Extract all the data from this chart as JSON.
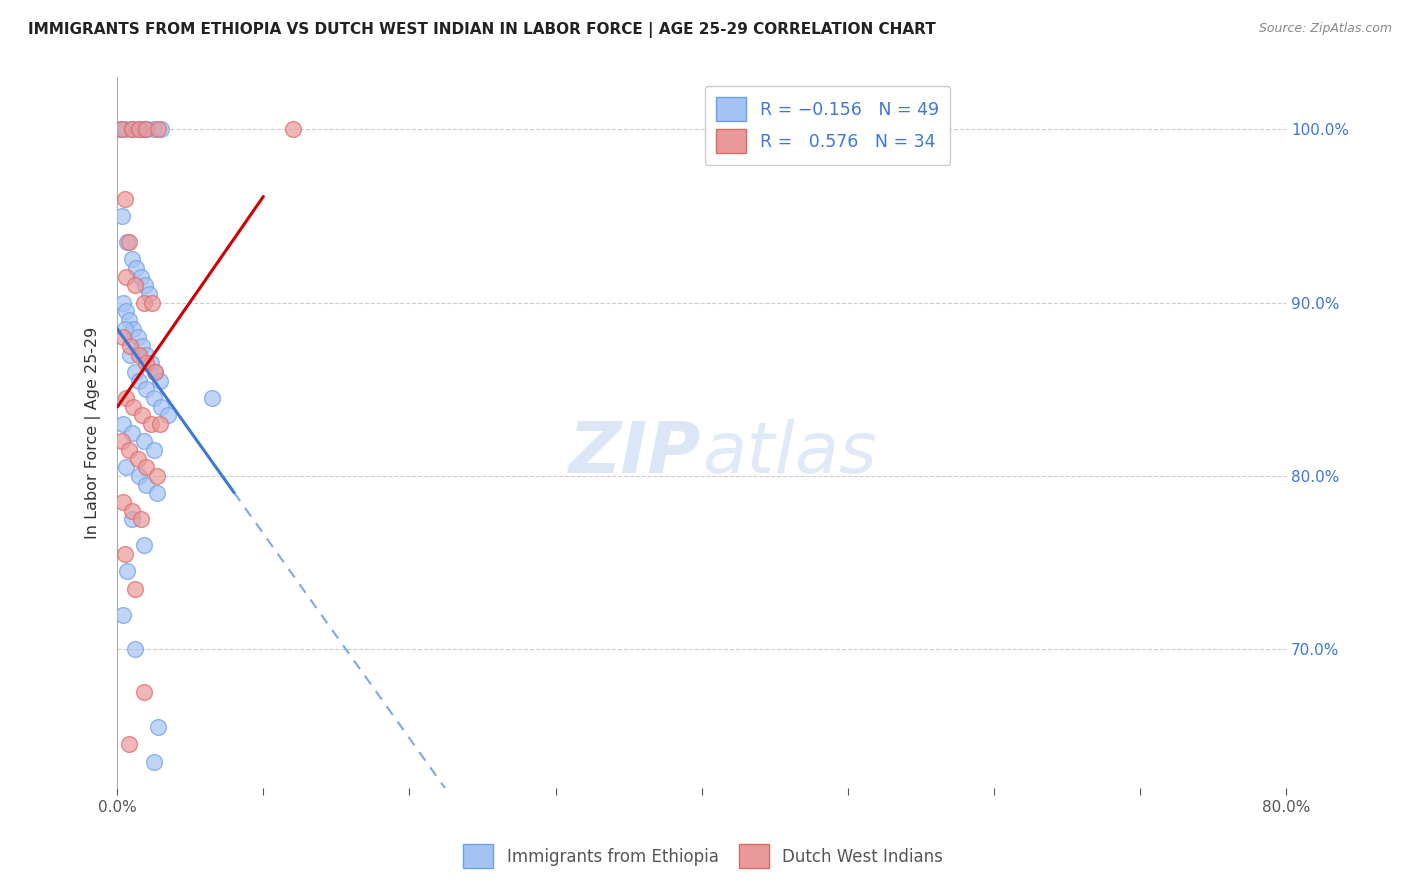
{
  "title": "IMMIGRANTS FROM ETHIOPIA VS DUTCH WEST INDIAN IN LABOR FORCE | AGE 25-29 CORRELATION CHART",
  "source": "Source: ZipAtlas.com",
  "ylabel": "In Labor Force | Age 25-29",
  "x_tick_labels": [
    "0.0%",
    "",
    "",
    "",
    "",
    "",
    "",
    "",
    "80.0%"
  ],
  "x_tick_values": [
    0,
    10,
    20,
    30,
    40,
    50,
    60,
    70,
    80
  ],
  "y_tick_labels": [
    "70.0%",
    "80.0%",
    "90.0%",
    "100.0%"
  ],
  "y_tick_values": [
    70,
    80,
    90,
    100
  ],
  "xlim": [
    0,
    80
  ],
  "ylim": [
    62,
    103
  ],
  "blue_color": "#a4c2f4",
  "pink_color": "#ea9999",
  "blue_edge_color": "#6d9eeb",
  "pink_edge_color": "#e06666",
  "blue_line_color": "#3c78d8",
  "pink_line_color": "#cc0000",
  "blue_scatter": [
    [
      0.2,
      100.0
    ],
    [
      0.5,
      100.0
    ],
    [
      1.0,
      100.0
    ],
    [
      1.5,
      100.0
    ],
    [
      2.0,
      100.0
    ],
    [
      2.5,
      100.0
    ],
    [
      1.8,
      100.0
    ],
    [
      3.0,
      100.0
    ],
    [
      0.3,
      95.0
    ],
    [
      0.7,
      93.5
    ],
    [
      1.0,
      92.5
    ],
    [
      1.3,
      92.0
    ],
    [
      1.6,
      91.5
    ],
    [
      1.9,
      91.0
    ],
    [
      2.2,
      90.5
    ],
    [
      0.4,
      90.0
    ],
    [
      0.6,
      89.5
    ],
    [
      0.8,
      89.0
    ],
    [
      1.1,
      88.5
    ],
    [
      1.4,
      88.0
    ],
    [
      1.7,
      87.5
    ],
    [
      2.0,
      87.0
    ],
    [
      2.3,
      86.5
    ],
    [
      2.6,
      86.0
    ],
    [
      2.9,
      85.5
    ],
    [
      0.5,
      88.5
    ],
    [
      0.9,
      87.0
    ],
    [
      1.2,
      86.0
    ],
    [
      1.5,
      85.5
    ],
    [
      2.0,
      85.0
    ],
    [
      2.5,
      84.5
    ],
    [
      3.0,
      84.0
    ],
    [
      3.5,
      83.5
    ],
    [
      0.4,
      83.0
    ],
    [
      1.0,
      82.5
    ],
    [
      1.8,
      82.0
    ],
    [
      2.5,
      81.5
    ],
    [
      0.6,
      80.5
    ],
    [
      1.5,
      80.0
    ],
    [
      2.0,
      79.5
    ],
    [
      2.7,
      79.0
    ],
    [
      1.0,
      77.5
    ],
    [
      1.8,
      76.0
    ],
    [
      0.7,
      74.5
    ],
    [
      0.4,
      72.0
    ],
    [
      1.2,
      70.0
    ],
    [
      6.5,
      84.5
    ],
    [
      2.8,
      65.5
    ],
    [
      2.5,
      63.5
    ]
  ],
  "pink_scatter": [
    [
      0.3,
      100.0
    ],
    [
      1.0,
      100.0
    ],
    [
      1.5,
      100.0
    ],
    [
      2.0,
      100.0
    ],
    [
      2.8,
      100.0
    ],
    [
      0.5,
      96.0
    ],
    [
      0.8,
      93.5
    ],
    [
      0.6,
      91.5
    ],
    [
      1.2,
      91.0
    ],
    [
      1.8,
      90.0
    ],
    [
      2.4,
      90.0
    ],
    [
      0.4,
      88.0
    ],
    [
      0.9,
      87.5
    ],
    [
      1.5,
      87.0
    ],
    [
      2.0,
      86.5
    ],
    [
      2.6,
      86.0
    ],
    [
      0.6,
      84.5
    ],
    [
      1.1,
      84.0
    ],
    [
      1.7,
      83.5
    ],
    [
      2.3,
      83.0
    ],
    [
      2.9,
      83.0
    ],
    [
      0.3,
      82.0
    ],
    [
      0.8,
      81.5
    ],
    [
      1.4,
      81.0
    ],
    [
      2.0,
      80.5
    ],
    [
      2.7,
      80.0
    ],
    [
      0.4,
      78.5
    ],
    [
      1.0,
      78.0
    ],
    [
      1.6,
      77.5
    ],
    [
      0.5,
      75.5
    ],
    [
      1.2,
      73.5
    ],
    [
      1.8,
      67.5
    ],
    [
      0.8,
      64.5
    ],
    [
      12.0,
      100.0
    ]
  ],
  "watermark": "ZIPatlas",
  "background_color": "#ffffff",
  "grid_color": "#cccccc",
  "blue_trend_start_x": 0,
  "blue_trend_end_x": 80,
  "blue_solid_end_x": 8,
  "pink_trend_start_x": 0,
  "pink_trend_end_x": 10
}
